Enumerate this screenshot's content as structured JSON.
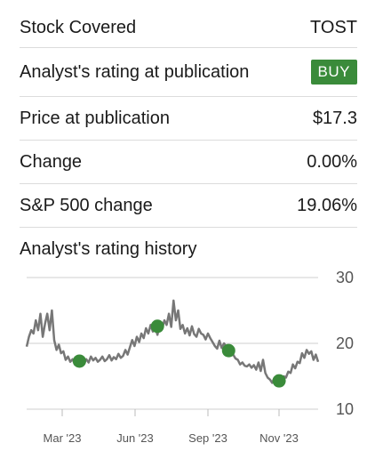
{
  "rows": {
    "stock_covered": {
      "label": "Stock Covered",
      "value": "TOST"
    },
    "rating": {
      "label": "Analyst's rating at publication",
      "value": "BUY"
    },
    "price": {
      "label": "Price at publication",
      "value": "$17.3"
    },
    "change": {
      "label": "Change",
      "value": "0.00%"
    },
    "sp500": {
      "label": "S&P 500 change",
      "value": "19.06%"
    }
  },
  "history_title": "Analyst's rating history",
  "colors": {
    "ticker": "#3b6fd0",
    "buy": "#3a8b3a",
    "positive": "#2e8b57",
    "line": "#777777",
    "marker": "#3a8b3a"
  },
  "chart_data": {
    "type": "line",
    "x_tick_labels": [
      "Mar '23",
      "Jun '23",
      "Sep '23",
      "Nov '23"
    ],
    "y_tick_labels": [
      "30",
      "20",
      "10"
    ],
    "ylim": [
      10,
      30
    ],
    "grid": true,
    "series": [
      {
        "values": [
          19.5,
          21,
          22,
          21.5,
          23.5,
          22,
          24.5,
          21,
          23,
          24.5,
          22,
          25,
          20.5,
          19,
          19.8,
          18.5,
          18.8,
          17.5,
          18,
          17.2,
          17.6,
          16.8,
          17.9,
          16.5,
          17.3,
          16.9,
          17.6,
          17.1,
          18,
          17.4,
          17.8,
          17.2,
          17.5,
          18,
          17.3,
          17.6,
          18.2,
          17.4,
          17.9,
          17.6,
          18.4,
          17.8,
          18.1,
          19,
          18.3,
          19.4,
          20.5,
          19.6,
          21,
          20.2,
          21.5,
          20.8,
          22.3,
          21.5,
          22.8,
          21.8,
          22.5,
          21.3,
          23,
          22.2,
          23.5,
          22.8,
          24.5,
          22.5,
          26.5,
          23.5,
          25,
          22.2,
          22.8,
          21.5,
          22.3,
          21.2,
          22.6,
          21.4,
          21,
          22.2,
          21.5,
          21.3,
          20.6,
          21.5,
          20.8,
          20.2,
          19.6,
          19.2,
          20.4,
          19.3,
          20,
          19.5,
          19.6,
          18.5,
          18.3,
          17.7,
          17.5,
          16.8,
          17.1,
          16.6,
          16.5,
          16.8,
          16.3,
          16.7,
          16,
          17.1,
          15.8,
          17.5,
          15.5,
          14.8,
          14.5,
          14,
          14.8,
          14.6,
          14.2,
          14.5,
          15,
          14.8,
          15.7,
          15.5,
          16.8,
          16.2,
          17.2,
          17,
          18.5,
          17.8,
          19,
          18.4,
          18.8,
          17.5,
          18.3,
          17.2
        ]
      }
    ],
    "rating_markers": [
      {
        "index": 23,
        "value": 17.3
      },
      {
        "index": 57,
        "value": 22.6
      },
      {
        "index": 88,
        "value": 18.9
      },
      {
        "index": 110,
        "value": 14.3
      }
    ]
  }
}
